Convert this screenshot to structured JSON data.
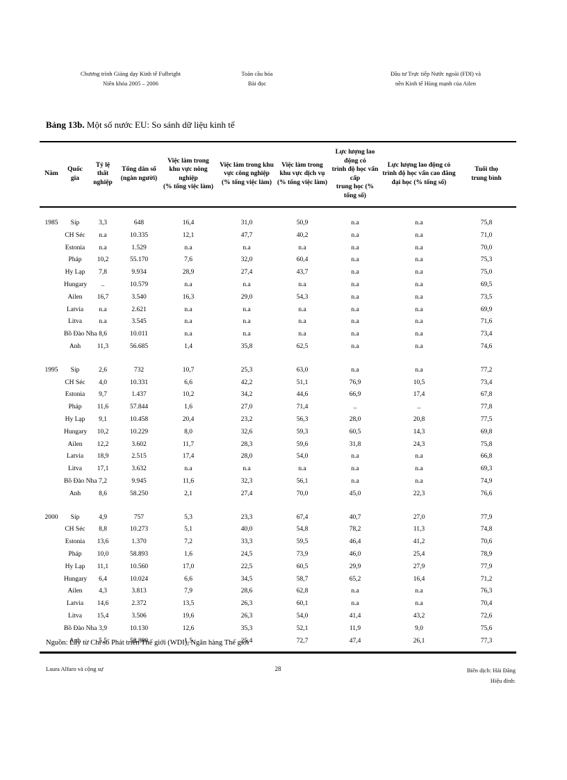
{
  "page_header": {
    "left": [
      "Chương trình Giảng dạy Kinh tế Fulbright",
      "Niên khóa 2005 – 2006"
    ],
    "center": [
      "Toàn cầu hóa",
      "Bài đọc"
    ],
    "right": [
      "Đầu tư Trực tiếp Nước ngoài (FDI) và",
      "nền Kinh tế Hùng mạnh của Ailen"
    ]
  },
  "table": {
    "title_bold": "Bảng 13b.",
    "title_rest": " Một số nước EU: So sánh dữ liệu kinh tế",
    "columns": [
      "Năm",
      "Quốc gia",
      "Tỷ lệ\nthất nghiệp",
      "Tổng dân số\n(ngàn người)",
      "Việc làm trong\nkhu vực nông nghiệp\n(% tổng việc làm)",
      "Việc làm trong khu\nvực công nghiệp\n(% tổng việc làm)",
      "Việc làm trong\nkhu vực dịch vụ\n(% tổng việc làm)",
      "Lực lượng lao động có\ntrình độ học vấn cấp\ntrung học (% tổng số)",
      "Lực lượng lao động có\ntrình độ học vấn cao đẳng\nđại học (% tổng số)",
      "Tuổi thọ\ntrung bình"
    ],
    "groups": [
      {
        "year": "1985",
        "rows": [
          [
            "Síp",
            "3,3",
            "648",
            "16,4",
            "31,0",
            "50,9",
            "n.a",
            "n.a",
            "75,8"
          ],
          [
            "CH Séc",
            "n.a",
            "10.335",
            "12,1",
            "47,7",
            "40,2",
            "n.a",
            "n.a",
            "71,0"
          ],
          [
            "Estonia",
            "n.a",
            "1.529",
            "n.a",
            "n.a",
            "n.a",
            "n.a",
            "n.a",
            "70,0"
          ],
          [
            "Pháp",
            "10,2",
            "55.170",
            "7,6",
            "32,0",
            "60,4",
            "n.a",
            "n.a",
            "75,3"
          ],
          [
            "Hy Lạp",
            "7,8",
            "9.934",
            "28,9",
            "27,4",
            "43,7",
            "n.a",
            "n.a",
            "75,0"
          ],
          [
            "Hungary",
            "..",
            "10.579",
            "n.a",
            "n.a",
            "n.a",
            "n.a",
            "n.a",
            "69,5"
          ],
          [
            "Ailen",
            "16,7",
            "3.540",
            "16,3",
            "29,0",
            "54,3",
            "n.a",
            "n.a",
            "73,5"
          ],
          [
            "Latvia",
            "n.a",
            "2.621",
            "n.a",
            "n.a",
            "n.a",
            "n.a",
            "n.a",
            "69,9"
          ],
          [
            "Litva",
            "n.a",
            "3.545",
            "n.a",
            "n.a",
            "n.a",
            "n.a",
            "n.a",
            "71,6"
          ],
          [
            "Bồ Đào Nha",
            "8,6",
            "10.011",
            "n.a",
            "n.a",
            "n.a",
            "n.a",
            "n.a",
            "73,4"
          ],
          [
            "Anh",
            "11,3",
            "56.685",
            "1,4",
            "35,8",
            "62,5",
            "n.a",
            "n.a",
            "74,6"
          ]
        ]
      },
      {
        "year": "1995",
        "rows": [
          [
            "Síp",
            "2,6",
            "732",
            "10,7",
            "25,3",
            "63,0",
            "n.a",
            "n.a",
            "77,2"
          ],
          [
            "CH Séc",
            "4,0",
            "10.331",
            "6,6",
            "42,2",
            "51,1",
            "76,9",
            "10,5",
            "73,4"
          ],
          [
            "Estonia",
            "9,7",
            "1.437",
            "10,2",
            "34,2",
            "44,6",
            "66,9",
            "17,4",
            "67,8"
          ],
          [
            "Pháp",
            "11,6",
            "57.844",
            "1,6",
            "27,0",
            "71,4",
            "..",
            "..",
            "77,8"
          ],
          [
            "Hy Lạp",
            "9,1",
            "10.458",
            "20,4",
            "23,2",
            "56,3",
            "28,0",
            "20,8",
            "77,5"
          ],
          [
            "Hungary",
            "10,2",
            "10.229",
            "8,0",
            "32,6",
            "59,3",
            "60,5",
            "14,3",
            "69,8"
          ],
          [
            "Ailen",
            "12,2",
            "3.602",
            "11,7",
            "28,3",
            "59,6",
            "31,8",
            "24,3",
            "75,8"
          ],
          [
            "Latvia",
            "18,9",
            "2.515",
            "17,4",
            "28,0",
            "54,0",
            "n.a",
            "n.a",
            "66,8"
          ],
          [
            "Litva",
            "17,1",
            "3.632",
            "n.a",
            "n.a",
            "n.a",
            "n.a",
            "n.a",
            "69,3"
          ],
          [
            "Bồ Đào Nha",
            "7,2",
            "9.945",
            "11,6",
            "32,3",
            "56,1",
            "n.a",
            "n.a",
            "74,9"
          ],
          [
            "Anh",
            "8,6",
            "58.250",
            "2,1",
            "27,4",
            "70,0",
            "45,0",
            "22,3",
            "76,6"
          ]
        ]
      },
      {
        "year": "2000",
        "rows": [
          [
            "Síp",
            "4,9",
            "757",
            "5,3",
            "23,3",
            "67,4",
            "40,7",
            "27,0",
            "77,9"
          ],
          [
            "CH Séc",
            "8,8",
            "10.273",
            "5,1",
            "40,0",
            "54,8",
            "78,2",
            "11,3",
            "74,8"
          ],
          [
            "Estonia",
            "13,6",
            "1.370",
            "7,2",
            "33,3",
            "59,5",
            "46,4",
            "41,2",
            "70,6"
          ],
          [
            "Pháp",
            "10,0",
            "58.893",
            "1,6",
            "24,5",
            "73,9",
            "46,0",
            "25,4",
            "78,9"
          ],
          [
            "Hy Lạp",
            "11,1",
            "10.560",
            "17,0",
            "22,5",
            "60,5",
            "29,9",
            "27,9",
            "77,9"
          ],
          [
            "Hungary",
            "6,4",
            "10.024",
            "6,6",
            "34,5",
            "58,7",
            "65,2",
            "16,4",
            "71,2"
          ],
          [
            "Ailen",
            "4,3",
            "3.813",
            "7,9",
            "28,6",
            "62,8",
            "n.a",
            "n.a",
            "76,3"
          ],
          [
            "Latvia",
            "14,6",
            "2.372",
            "13,5",
            "26,3",
            "60,1",
            "n.a",
            "n.a",
            "70,4"
          ],
          [
            "Litva",
            "15,4",
            "3.506",
            "19,6",
            "26,3",
            "54,0",
            "41,4",
            "43,2",
            "72,6"
          ],
          [
            "Bồ Đào Nha",
            "3,9",
            "10.130",
            "12,6",
            "35,3",
            "52,1",
            "11,9",
            "9,0",
            "75,6"
          ],
          [
            "Anh",
            "5,5",
            "58.880",
            "1,5",
            "25,4",
            "72,7",
            "47,4",
            "26,1",
            "77,3"
          ]
        ]
      }
    ],
    "source": "Nguồn: Lấy từ Chỉ số Phát triển Thế giới (WDI), Ngân hàng Thế giới"
  },
  "page_footer": {
    "left": "Laura Alfaro và cộng sự",
    "page_number": "28",
    "right": [
      "Biên dịch: Hải Đăng",
      "Hiệu đính:"
    ]
  }
}
